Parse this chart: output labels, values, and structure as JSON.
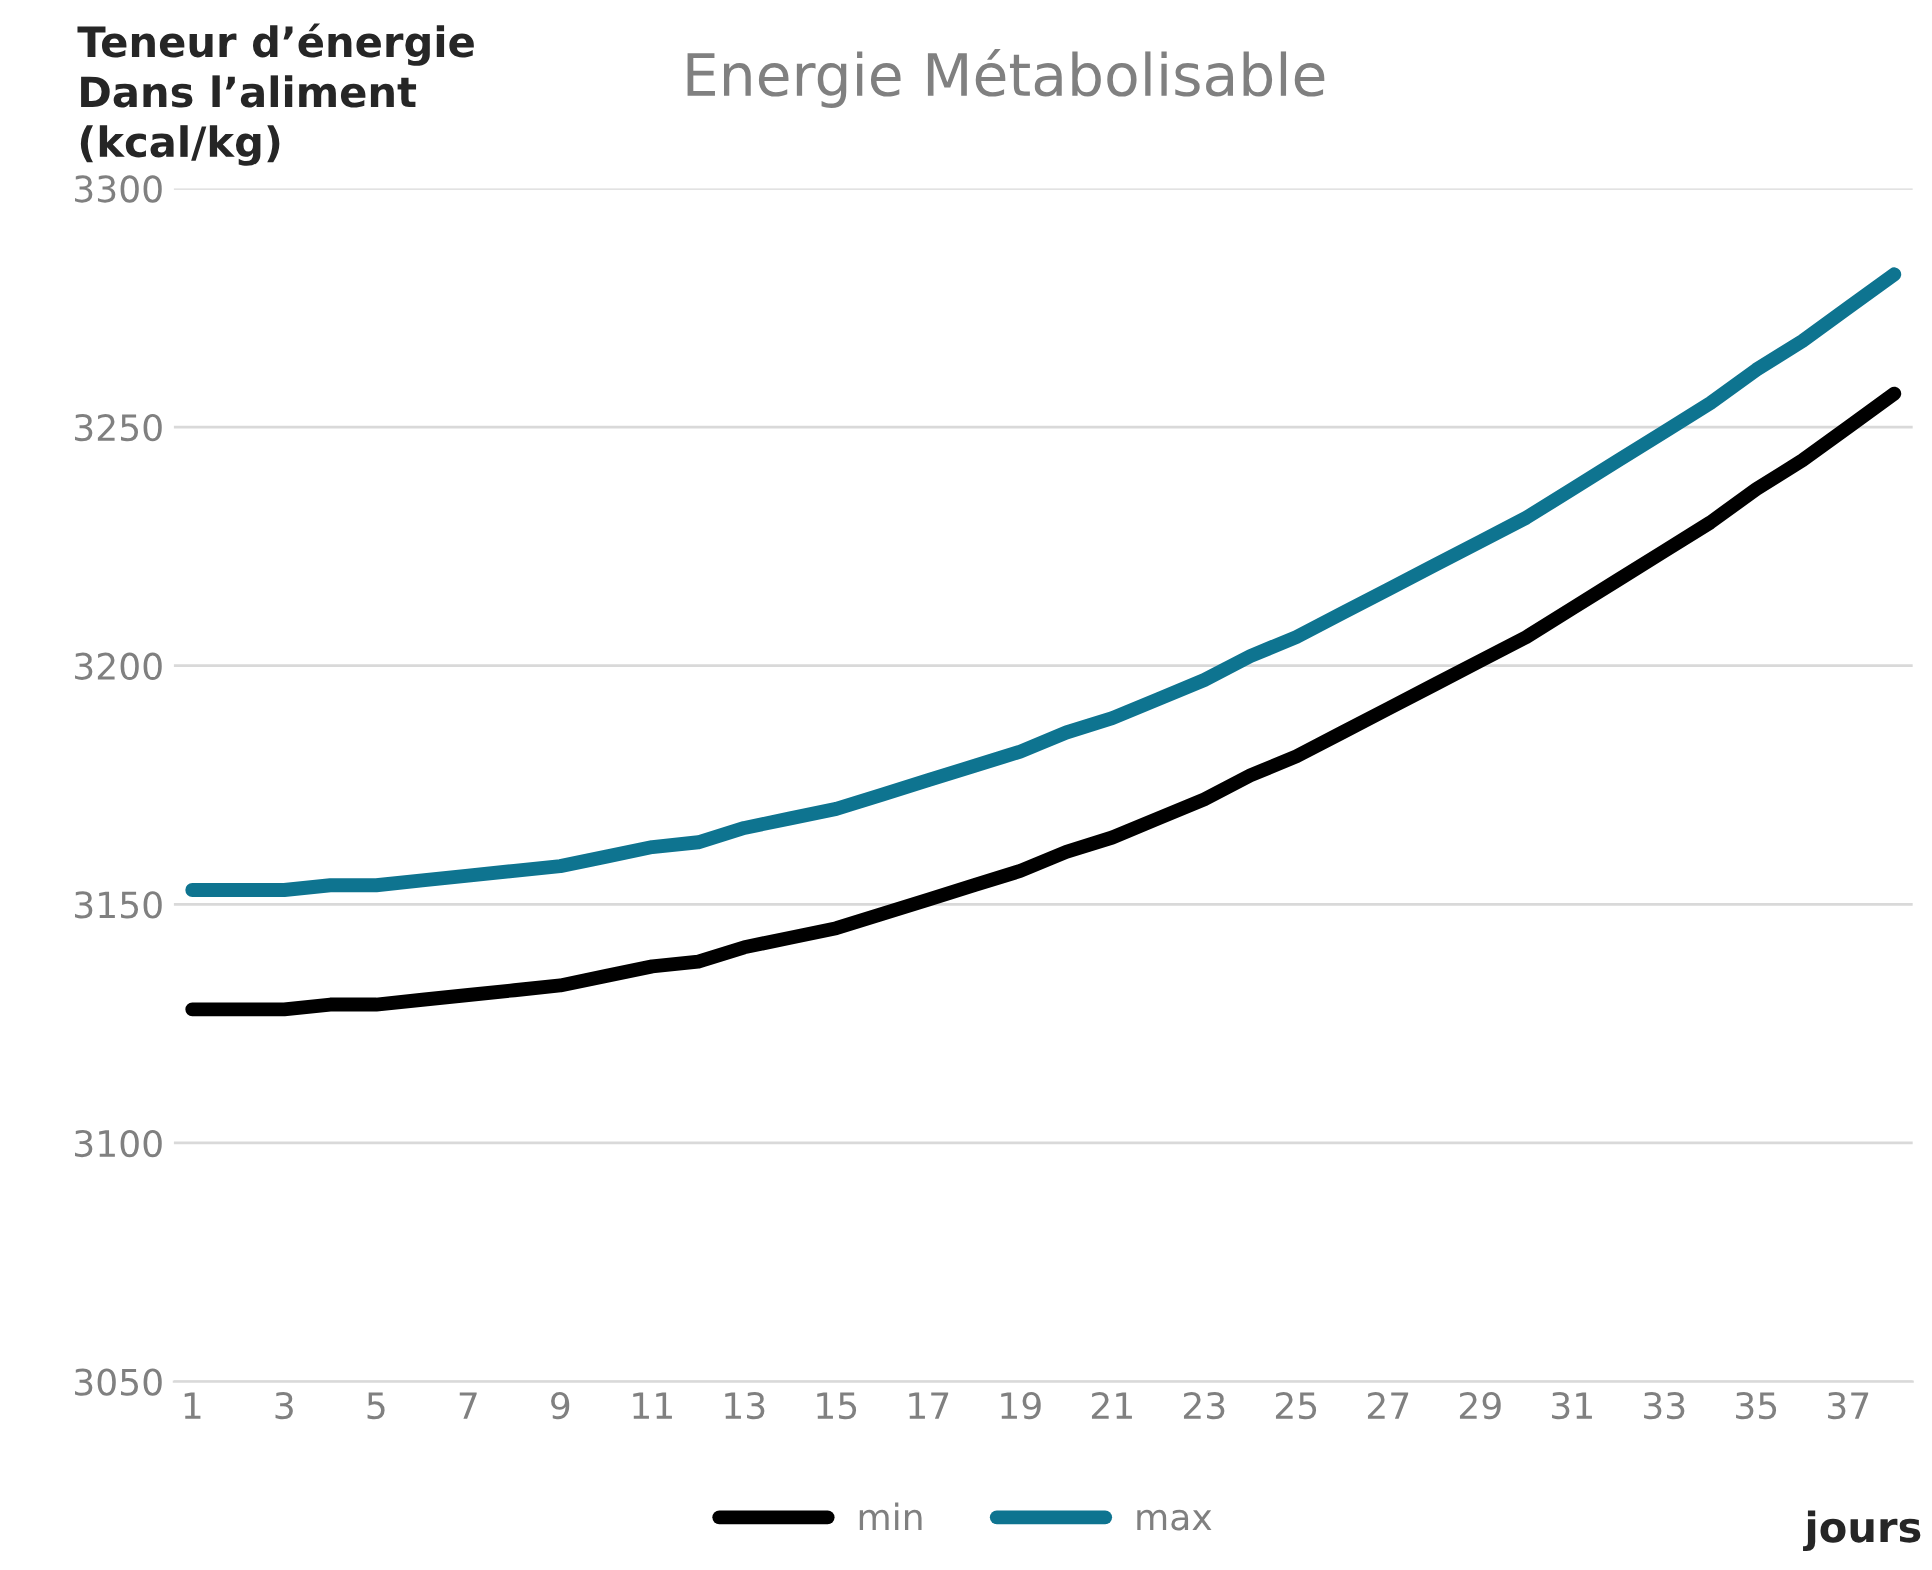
{
  "chart_data": {
    "type": "line",
    "title": "Energie Métabolisable",
    "ylabel": "Teneur d’énergie\nDans l’aliment\n(kcal/kg)",
    "xlabel": "jours",
    "categories": [
      "1",
      null,
      "3",
      null,
      "5",
      null,
      "7",
      null,
      "9",
      null,
      "11",
      null,
      "13",
      null,
      "15",
      null,
      "17",
      null,
      "19",
      null,
      "21",
      null,
      "23",
      null,
      "25",
      null,
      "27",
      null,
      "29",
      null,
      "31",
      null,
      "33",
      null,
      "35",
      null,
      "37",
      null
    ],
    "series": [
      {
        "name": "min",
        "color": "#000000",
        "values": [
          3128,
          3128,
          3128,
          3129,
          3129,
          3130,
          3131,
          3132,
          3133,
          3135,
          3137,
          3138,
          3141,
          3143,
          3145,
          3148,
          3151,
          3154,
          3157,
          3161,
          3164,
          3168,
          3172,
          3177,
          3181,
          3186,
          3191,
          3196,
          3201,
          3206,
          3212,
          3218,
          3224,
          3230,
          3237,
          3243,
          3250,
          3257
        ]
      },
      {
        "name": "max",
        "color": "#0e7490",
        "values": [
          3153,
          3153,
          3153,
          3154,
          3154,
          3155,
          3156,
          3157,
          3158,
          3160,
          3162,
          3163,
          3166,
          3168,
          3170,
          3173,
          3176,
          3179,
          3182,
          3186,
          3189,
          3193,
          3197,
          3202,
          3206,
          3211,
          3216,
          3221,
          3226,
          3231,
          3237,
          3243,
          3249,
          3255,
          3262,
          3268,
          3275,
          3282
        ]
      }
    ],
    "ylim": [
      3050,
      3300
    ],
    "yticks": [
      3050,
      3100,
      3150,
      3200,
      3250,
      3300
    ],
    "grid": "y",
    "legend": "bottom"
  }
}
